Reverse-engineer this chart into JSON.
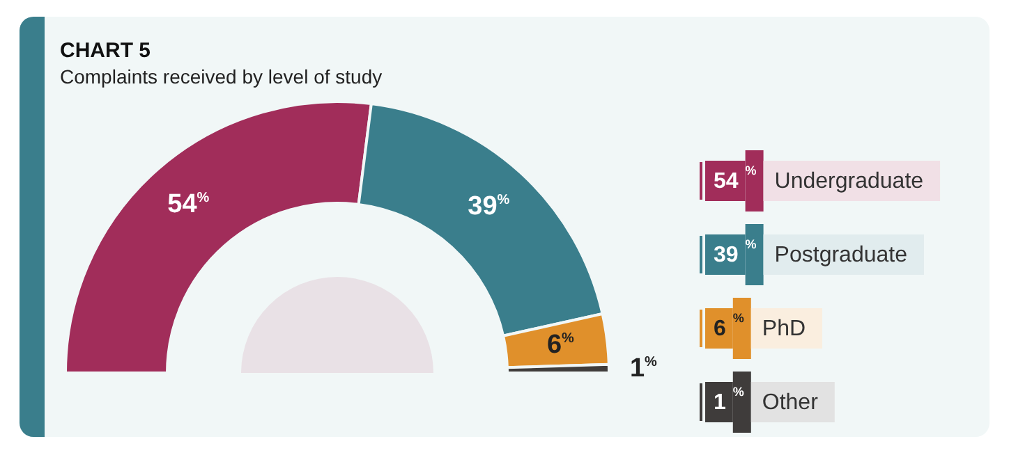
{
  "chart_data": {
    "type": "donut",
    "title": "CHART 5",
    "subtitle": "Complaints received by level of study",
    "categories": [
      "Undergraduate",
      "Postgraduate",
      "PhD",
      "Other"
    ],
    "values": [
      54,
      39,
      6,
      1
    ],
    "colors": [
      "#a12d5a",
      "#3a7e8c",
      "#e0902b",
      "#3f3c3b"
    ],
    "value_labels": [
      "54$^{%}$",
      "39$^{%}$",
      "6$^{%}$",
      "1$^{%}$"
    ],
    "legend": "right"
  }
}
